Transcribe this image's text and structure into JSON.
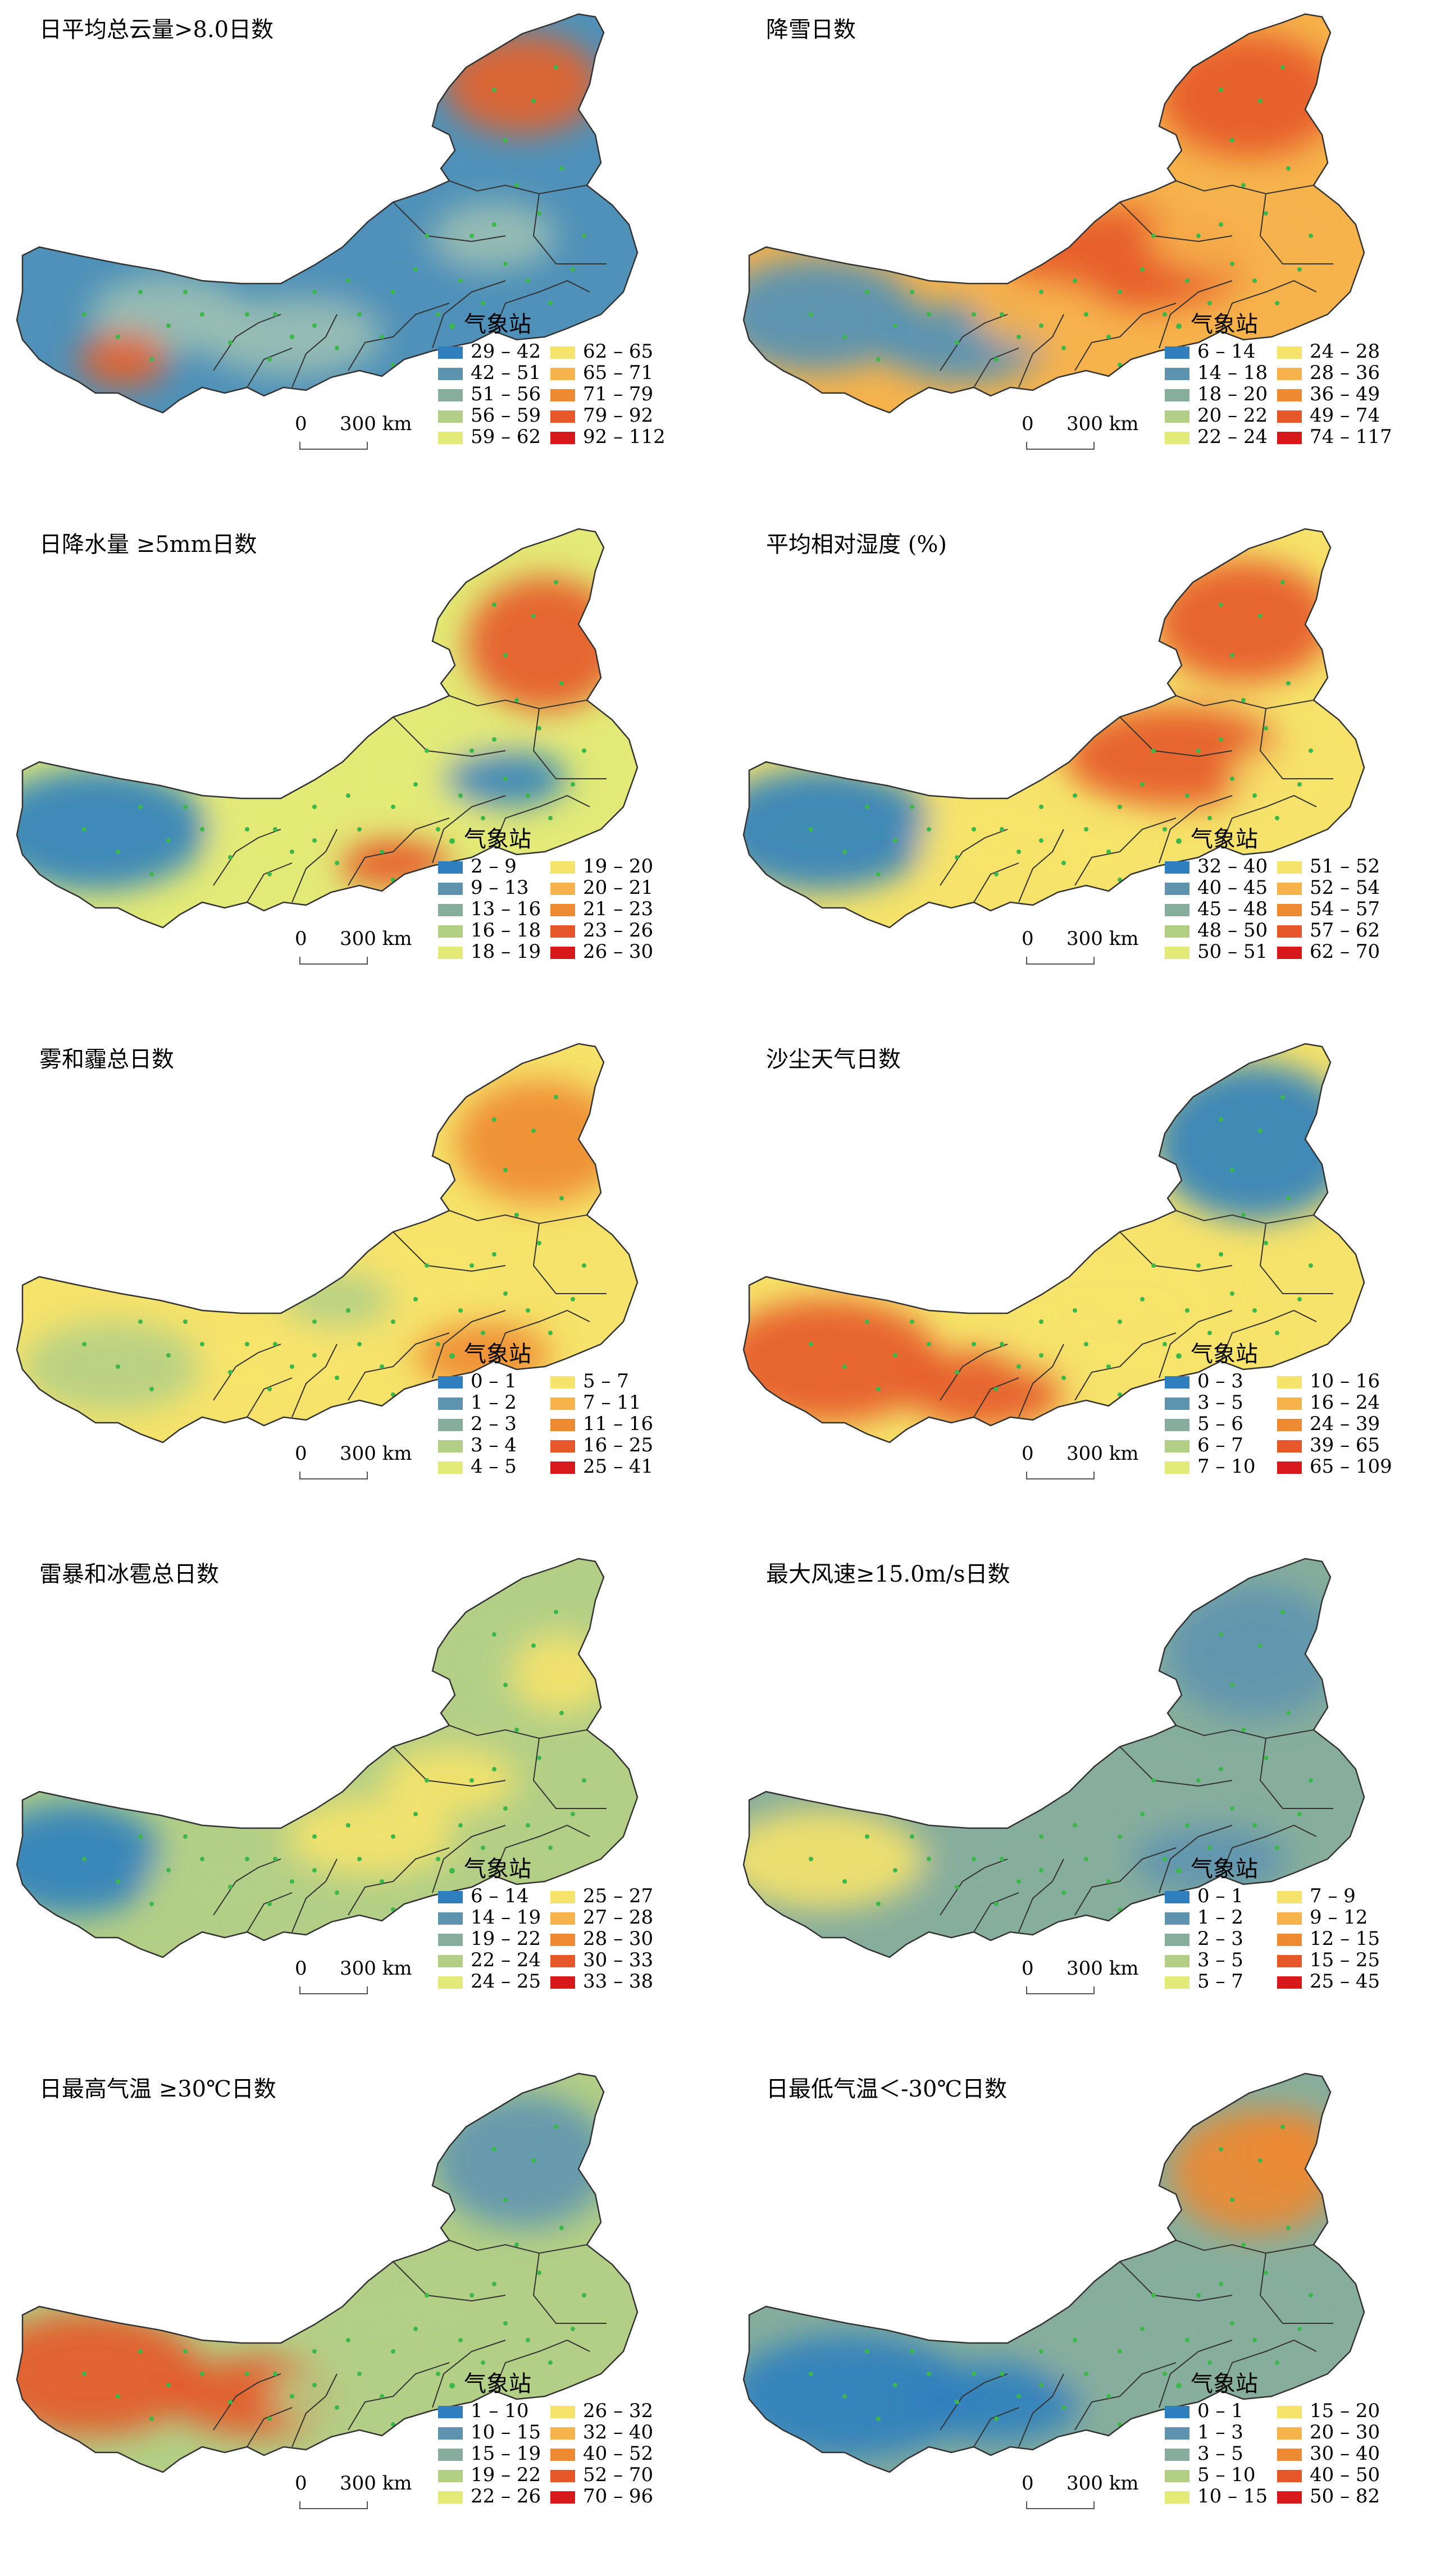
{
  "common": {
    "station_label": "气象站",
    "scale_zero": "0",
    "scale_label": "300 km",
    "station_color": "#3cb84a",
    "boundary_color": "#333333"
  },
  "panels": [
    {
      "title": "日平均总云量>8.0日数",
      "map_colors": [
        "#9cc0b3",
        "#4f91b9",
        "#e8632a"
      ],
      "legend": [
        {
          "range": "29 – 42",
          "color": "#2f7fbf"
        },
        {
          "range": "42 – 51",
          "color": "#5e93b0"
        },
        {
          "range": "51 – 56",
          "color": "#87ae9c"
        },
        {
          "range": "56 – 59",
          "color": "#b3cf86"
        },
        {
          "range": "59 – 62",
          "color": "#e3ea77"
        },
        {
          "range": "62 – 65",
          "color": "#f6e36b"
        },
        {
          "range": "65 – 71",
          "color": "#f6b34c"
        },
        {
          "range": "71 – 79",
          "color": "#ee8a32"
        },
        {
          "range": "79 – 92",
          "color": "#e6572a"
        },
        {
          "range": "92 – 112",
          "color": "#d7191c"
        }
      ]
    },
    {
      "title": "降雪日数",
      "map_colors": [
        "#4f91b9",
        "#f6b34c",
        "#e6572a"
      ],
      "legend": [
        {
          "range": "6 – 14",
          "color": "#2f7fbf"
        },
        {
          "range": "14 – 18",
          "color": "#5e93b0"
        },
        {
          "range": "18 – 20",
          "color": "#87ae9c"
        },
        {
          "range": "20 – 22",
          "color": "#b3cf86"
        },
        {
          "range": "22 – 24",
          "color": "#e3ea77"
        },
        {
          "range": "24 – 28",
          "color": "#f6e36b"
        },
        {
          "range": "28 – 36",
          "color": "#f6b34c"
        },
        {
          "range": "36 – 49",
          "color": "#ee8a32"
        },
        {
          "range": "49 – 74",
          "color": "#e6572a"
        },
        {
          "range": "74 – 117",
          "color": "#d7191c"
        }
      ]
    },
    {
      "title": "日降水量 ≥5mm日数",
      "map_colors": [
        "#2f7fbf",
        "#e3ea77",
        "#e6572a"
      ],
      "legend": [
        {
          "range": "2 – 9",
          "color": "#2f7fbf"
        },
        {
          "range": "9 – 13",
          "color": "#5e93b0"
        },
        {
          "range": "13 – 16",
          "color": "#87ae9c"
        },
        {
          "range": "16 – 18",
          "color": "#b3cf86"
        },
        {
          "range": "18 – 19",
          "color": "#e3ea77"
        },
        {
          "range": "19 – 20",
          "color": "#f6e36b"
        },
        {
          "range": "20 – 21",
          "color": "#f6b34c"
        },
        {
          "range": "21 – 23",
          "color": "#ee8a32"
        },
        {
          "range": "23 – 26",
          "color": "#e6572a"
        },
        {
          "range": "26 – 30",
          "color": "#d7191c"
        }
      ]
    },
    {
      "title": "平均相对湿度 (%)",
      "map_colors": [
        "#2f7fbf",
        "#f6e36b",
        "#e6572a"
      ],
      "legend": [
        {
          "range": "32 – 40",
          "color": "#2f7fbf"
        },
        {
          "range": "40 – 45",
          "color": "#5e93b0"
        },
        {
          "range": "45 – 48",
          "color": "#87ae9c"
        },
        {
          "range": "48 – 50",
          "color": "#b3cf86"
        },
        {
          "range": "50 – 51",
          "color": "#e3ea77"
        },
        {
          "range": "51 – 52",
          "color": "#f6e36b"
        },
        {
          "range": "52 – 54",
          "color": "#f6b34c"
        },
        {
          "range": "54 – 57",
          "color": "#ee8a32"
        },
        {
          "range": "57 – 62",
          "color": "#e6572a"
        },
        {
          "range": "62 – 70",
          "color": "#d7191c"
        }
      ]
    },
    {
      "title": "雾和霾总日数",
      "map_colors": [
        "#b3cf86",
        "#f6e36b",
        "#ee8a32"
      ],
      "legend": [
        {
          "range": "0 – 1",
          "color": "#2f7fbf"
        },
        {
          "range": "1 – 2",
          "color": "#5e93b0"
        },
        {
          "range": "2 – 3",
          "color": "#87ae9c"
        },
        {
          "range": "3 – 4",
          "color": "#b3cf86"
        },
        {
          "range": "4 – 5",
          "color": "#e3ea77"
        },
        {
          "range": "5 – 7",
          "color": "#f6e36b"
        },
        {
          "range": "7 – 11",
          "color": "#f6b34c"
        },
        {
          "range": "11 – 16",
          "color": "#ee8a32"
        },
        {
          "range": "16 – 25",
          "color": "#e6572a"
        },
        {
          "range": "25 – 41",
          "color": "#d7191c"
        }
      ]
    },
    {
      "title": "沙尘天气日数",
      "map_colors": [
        "#e6572a",
        "#f6e36b",
        "#2f7fbf"
      ],
      "legend": [
        {
          "range": "0 – 3",
          "color": "#2f7fbf"
        },
        {
          "range": "3 – 5",
          "color": "#5e93b0"
        },
        {
          "range": "5 – 6",
          "color": "#87ae9c"
        },
        {
          "range": "6 – 7",
          "color": "#b3cf86"
        },
        {
          "range": "7 – 10",
          "color": "#e3ea77"
        },
        {
          "range": "10 – 16",
          "color": "#f6e36b"
        },
        {
          "range": "16 – 24",
          "color": "#f6b34c"
        },
        {
          "range": "24 – 39",
          "color": "#ee8a32"
        },
        {
          "range": "39 – 65",
          "color": "#e6572a"
        },
        {
          "range": "65 – 109",
          "color": "#d7191c"
        }
      ]
    },
    {
      "title": "雷暴和冰雹总日数",
      "map_colors": [
        "#2f7fbf",
        "#b3cf86",
        "#f6e36b"
      ],
      "legend": [
        {
          "range": "6 – 14",
          "color": "#2f7fbf"
        },
        {
          "range": "14 – 19",
          "color": "#5e93b0"
        },
        {
          "range": "19 – 22",
          "color": "#87ae9c"
        },
        {
          "range": "22 – 24",
          "color": "#b3cf86"
        },
        {
          "range": "24 – 25",
          "color": "#e3ea77"
        },
        {
          "range": "25 – 27",
          "color": "#f6e36b"
        },
        {
          "range": "27 – 28",
          "color": "#f6b34c"
        },
        {
          "range": "28 – 30",
          "color": "#ee8a32"
        },
        {
          "range": "30 – 33",
          "color": "#e6572a"
        },
        {
          "range": "33 – 38",
          "color": "#d7191c"
        }
      ]
    },
    {
      "title": "最大风速≥15.0m/s日数",
      "map_colors": [
        "#f6e36b",
        "#87ae9c",
        "#5e93b0"
      ],
      "legend": [
        {
          "range": "0 – 1",
          "color": "#2f7fbf"
        },
        {
          "range": "1 – 2",
          "color": "#5e93b0"
        },
        {
          "range": "2 – 3",
          "color": "#87ae9c"
        },
        {
          "range": "3 – 5",
          "color": "#b3cf86"
        },
        {
          "range": "5 – 7",
          "color": "#e3ea77"
        },
        {
          "range": "7 – 9",
          "color": "#f6e36b"
        },
        {
          "range": "9 – 12",
          "color": "#f6b34c"
        },
        {
          "range": "12 – 15",
          "color": "#ee8a32"
        },
        {
          "range": "15 – 25",
          "color": "#e6572a"
        },
        {
          "range": "25 – 45",
          "color": "#d7191c"
        }
      ]
    },
    {
      "title": "日最高气温 ≥30℃日数",
      "map_colors": [
        "#e6572a",
        "#b3cf86",
        "#5e93b0"
      ],
      "legend": [
        {
          "range": "1 – 10",
          "color": "#2f7fbf"
        },
        {
          "range": "10 – 15",
          "color": "#5e93b0"
        },
        {
          "range": "15 – 19",
          "color": "#87ae9c"
        },
        {
          "range": "19 – 22",
          "color": "#b3cf86"
        },
        {
          "range": "22 – 26",
          "color": "#e3ea77"
        },
        {
          "range": "26 – 32",
          "color": "#f6e36b"
        },
        {
          "range": "32 – 40",
          "color": "#f6b34c"
        },
        {
          "range": "40 – 52",
          "color": "#ee8a32"
        },
        {
          "range": "52 – 70",
          "color": "#e6572a"
        },
        {
          "range": "70 – 96",
          "color": "#d7191c"
        }
      ]
    },
    {
      "title": "日最低气温＜-30℃日数",
      "map_colors": [
        "#2f7fbf",
        "#87ae9c",
        "#ee8a32"
      ],
      "legend": [
        {
          "range": "0 – 1",
          "color": "#2f7fbf"
        },
        {
          "range": "1 – 3",
          "color": "#5e93b0"
        },
        {
          "range": "3 – 5",
          "color": "#87ae9c"
        },
        {
          "range": "5 – 10",
          "color": "#b3cf86"
        },
        {
          "range": "10 – 15",
          "color": "#e3ea77"
        },
        {
          "range": "15 – 20",
          "color": "#f6e36b"
        },
        {
          "range": "20 – 30",
          "color": "#f6b34c"
        },
        {
          "range": "30 – 40",
          "color": "#ee8a32"
        },
        {
          "range": "40 – 50",
          "color": "#e6572a"
        },
        {
          "range": "50 – 82",
          "color": "#d7191c"
        }
      ]
    }
  ]
}
